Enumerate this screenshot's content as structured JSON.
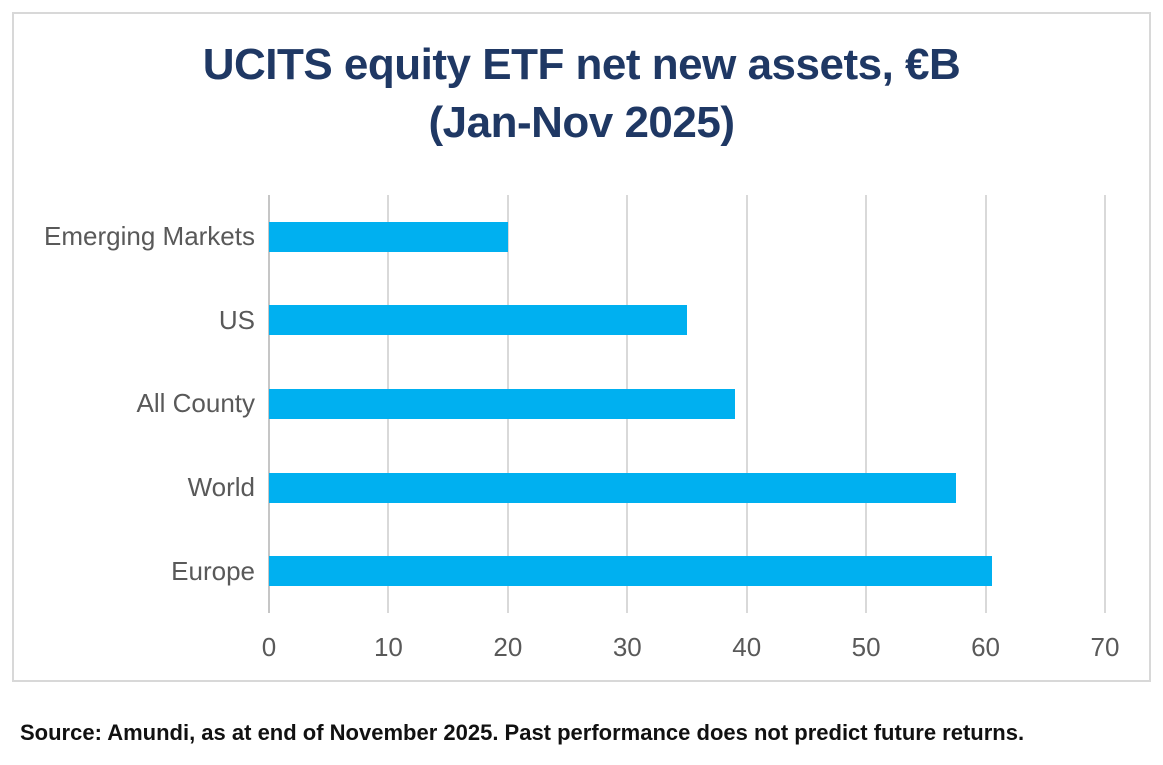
{
  "header": {
    "title_line1": "UCITS equity ETF net new assets, €B",
    "title_line2": "(Jan-Nov 2025)",
    "title_color": "#1F3864"
  },
  "chart_data": {
    "type": "bar",
    "orientation": "horizontal",
    "title": "UCITS equity ETF net new assets, €B (Jan-Nov 2025)",
    "categories": [
      "Emerging Markets",
      "US",
      "All County",
      "World",
      "Europe"
    ],
    "values": [
      20,
      35,
      39,
      57.5,
      60.5
    ],
    "xlabel": "",
    "ylabel": "",
    "x_ticks": [
      0,
      10,
      20,
      30,
      40,
      50,
      60,
      70
    ],
    "xlim": [
      0,
      70
    ],
    "grid": true,
    "legend": false,
    "bar_color": "#00B0F0",
    "gridline_color": "#d9d9d9",
    "axis_line_color": "#c6c6c6",
    "tick_label_color": "#595959"
  },
  "footer": {
    "source_text": "Source: Amundi, as at end of November 2025. Past performance does not predict future returns."
  }
}
